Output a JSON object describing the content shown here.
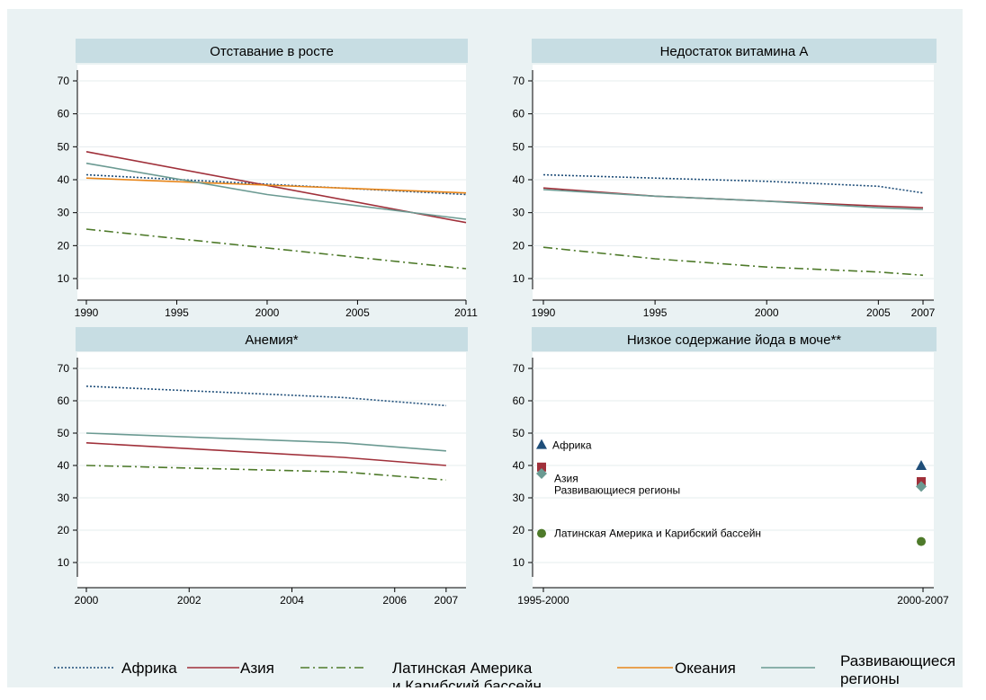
{
  "colors": {
    "background": "#eaf2f3",
    "panel_title_bg": "#c7dde3",
    "plot_bg": "#ffffff",
    "africa": "#1f4e79",
    "asia": "#a0303a",
    "latin_america": "#4e7a2a",
    "oceania": "#e8861a",
    "developing": "#6b9a92"
  },
  "legend": {
    "africa": "Африка",
    "asia": "Азия",
    "latin_line1": "Латинская Америка",
    "latin_line2": "и Карибский бассейн",
    "oceania": "Океания",
    "developing_line1": "Развивающиеся",
    "developing_line2": "регионы"
  },
  "chart_data": [
    {
      "type": "line",
      "title": "Отставание в росте",
      "x_ticks": [
        "1990",
        "1995",
        "2000",
        "2005",
        "2011"
      ],
      "xlim": [
        1990,
        2011
      ],
      "ylim": [
        7,
        73
      ],
      "y_ticks": [
        "10",
        "20",
        "30",
        "40",
        "50",
        "60",
        "70"
      ],
      "series": [
        {
          "name": "Африка",
          "key": "africa",
          "x": [
            1990,
            2011
          ],
          "y": [
            41.5,
            35.5
          ]
        },
        {
          "name": "Азия",
          "key": "asia",
          "x": [
            1990,
            2011
          ],
          "y": [
            48.5,
            27
          ]
        },
        {
          "name": "Латинская Америка и Карибский бассейн",
          "key": "latin_america",
          "x": [
            1990,
            2011
          ],
          "y": [
            25,
            13
          ]
        },
        {
          "name": "Океания",
          "key": "oceania",
          "x": [
            1990,
            2011
          ],
          "y": [
            40.5,
            36
          ]
        },
        {
          "name": "Развивающиеся регионы",
          "key": "developing",
          "x": [
            1990,
            2000,
            2011
          ],
          "y": [
            45,
            35.5,
            28
          ]
        }
      ]
    },
    {
      "type": "line",
      "title": "Недостаток витамина A",
      "x_ticks": [
        "1990",
        "1995",
        "2000",
        "2005",
        "2007"
      ],
      "xlim": [
        1990,
        2007
      ],
      "ylim": [
        7,
        73
      ],
      "y_ticks": [
        "10",
        "20",
        "30",
        "40",
        "50",
        "60",
        "70"
      ],
      "series": [
        {
          "name": "Африка",
          "key": "africa",
          "x": [
            1990,
            1995,
            2000,
            2005,
            2007
          ],
          "y": [
            41.5,
            40.5,
            39.5,
            38,
            36
          ]
        },
        {
          "name": "Азия",
          "key": "asia",
          "x": [
            1990,
            1995,
            2000,
            2005,
            2007
          ],
          "y": [
            37.5,
            35,
            33.5,
            32,
            31.5
          ]
        },
        {
          "name": "Латинская Америка и Карибский бассейн",
          "key": "latin_america",
          "x": [
            1990,
            1995,
            2000,
            2005,
            2007
          ],
          "y": [
            19.5,
            16,
            13.5,
            12,
            11
          ]
        },
        {
          "name": "Развивающиеся регионы",
          "key": "developing",
          "x": [
            1990,
            1995,
            2000,
            2005,
            2007
          ],
          "y": [
            37,
            35,
            33.5,
            31.5,
            31
          ]
        }
      ]
    },
    {
      "type": "line",
      "title": "Анемия*",
      "x_ticks": [
        "2000",
        "2002",
        "2004",
        "2006",
        "2007"
      ],
      "x_tick_values": [
        2000,
        2002,
        2004,
        2006,
        2007
      ],
      "xlim": [
        2000,
        2008
      ],
      "ylim": [
        7,
        73
      ],
      "y_ticks": [
        "10",
        "20",
        "30",
        "40",
        "50",
        "60",
        "70"
      ],
      "series": [
        {
          "name": "Африка",
          "key": "africa",
          "x": [
            2000,
            2005,
            2007
          ],
          "y": [
            64.5,
            61,
            58.5
          ]
        },
        {
          "name": "Азия",
          "key": "asia",
          "x": [
            2000,
            2005,
            2007
          ],
          "y": [
            47,
            42.5,
            40
          ]
        },
        {
          "name": "Латинская Америка и Карибский бассейн",
          "key": "latin_america",
          "x": [
            2000,
            2005,
            2007
          ],
          "y": [
            40,
            38,
            35.5
          ]
        },
        {
          "name": "Развивающиеся регионы",
          "key": "developing",
          "x": [
            2000,
            2005,
            2007
          ],
          "y": [
            50,
            47,
            44.5
          ]
        }
      ]
    },
    {
      "type": "scatter",
      "title": "Низкое содержание йода в моче**",
      "categories": [
        "1995-2000",
        "2000-2007"
      ],
      "ylim": [
        7,
        73
      ],
      "y_ticks": [
        "10",
        "20",
        "30",
        "40",
        "50",
        "60",
        "70"
      ],
      "series": [
        {
          "name": "Африка",
          "key": "africa",
          "marker": "triangle",
          "values": [
            46.5,
            40
          ]
        },
        {
          "name": "Азия",
          "key": "asia",
          "marker": "square",
          "values": [
            39.5,
            35
          ]
        },
        {
          "name": "Развивающиеся регионы",
          "key": "developing",
          "marker": "diamond",
          "values": [
            37.5,
            33.5
          ]
        },
        {
          "name": "Латинская Америка и Карибский бассейн",
          "key": "latin_america",
          "marker": "circle",
          "values": [
            19,
            16.5
          ]
        }
      ],
      "annotations": {
        "africa": "Африка",
        "asia": "Азия",
        "developing": "Развивающиеся регионы",
        "latin_america": "Латинская Америка и Карибский бассейн"
      }
    }
  ]
}
